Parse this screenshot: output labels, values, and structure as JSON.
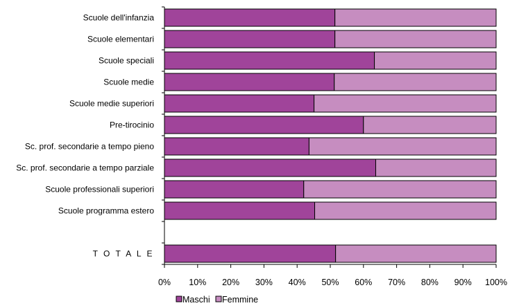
{
  "chart_data": {
    "type": "bar",
    "orientation": "horizontal",
    "stacked": true,
    "percent_stacked": true,
    "categories": [
      "Scuole dell'infanzia",
      "Scuole elementari",
      "Scuole speciali",
      "Scuole medie",
      "Scuole medie superiori",
      "Pre-tirocinio",
      "Sc. prof. secondarie a tempo pieno",
      "Sc. prof. secondarie a tempo parziale",
      "Scuole professionali superiori",
      "Scuole programma estero",
      "",
      "T O T A L E"
    ],
    "series": [
      {
        "name": "Maschi",
        "color": "#A0449A",
        "values": [
          51.4,
          51.4,
          63.3,
          51.2,
          45.1,
          60.0,
          43.6,
          63.7,
          42.0,
          45.3,
          null,
          51.6
        ]
      },
      {
        "name": "Femmine",
        "color": "#C68DC0",
        "values": [
          48.6,
          48.6,
          36.7,
          48.8,
          54.9,
          40.0,
          56.4,
          36.3,
          58.0,
          54.7,
          null,
          48.4
        ]
      }
    ],
    "xlim": [
      0,
      100
    ],
    "xticks": [
      "0%",
      "10%",
      "20%",
      "30%",
      "40%",
      "50%",
      "60%",
      "70%",
      "80%",
      "90%",
      "100%"
    ],
    "grid": false,
    "legend": {
      "position": "bottom-left",
      "entries": [
        "Maschi",
        "Femmine"
      ]
    }
  }
}
